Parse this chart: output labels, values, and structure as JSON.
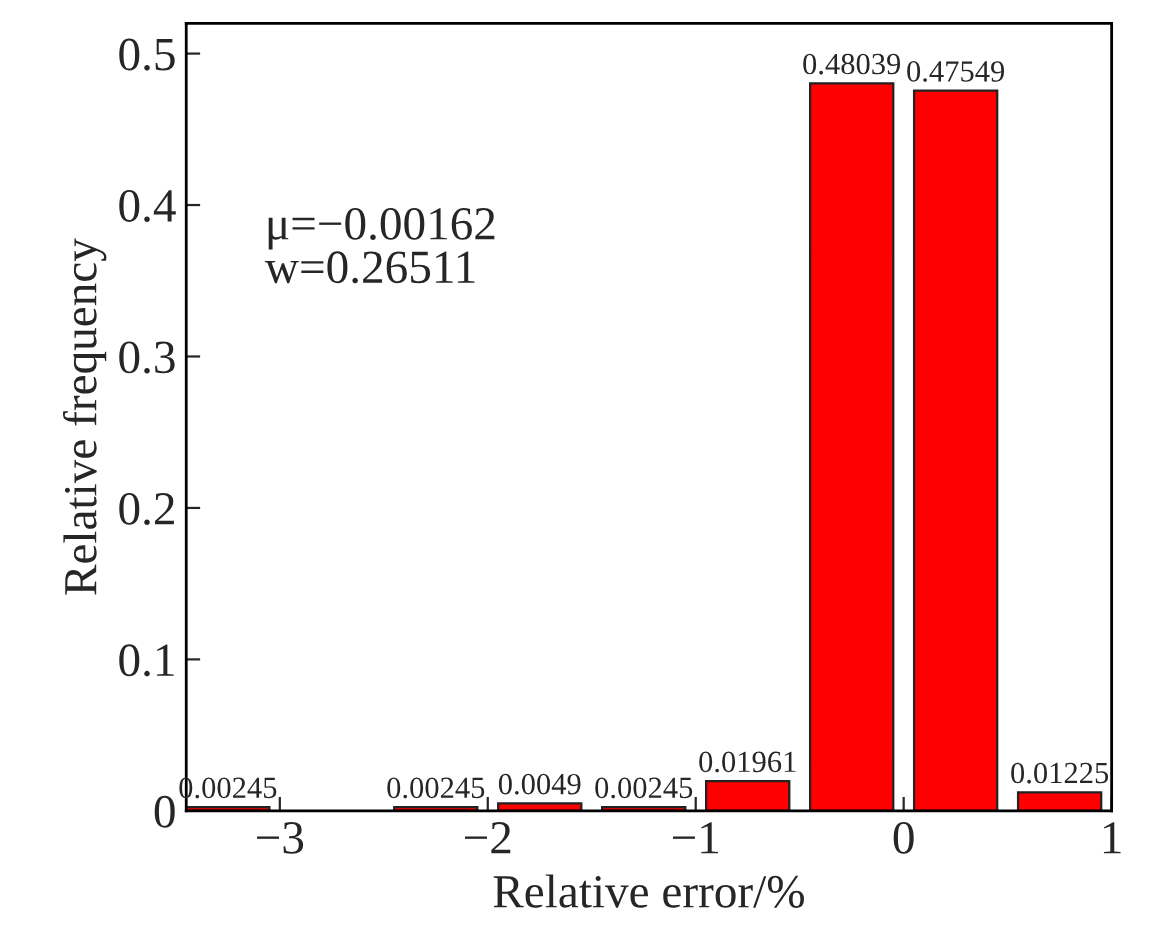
{
  "chart_data": {
    "type": "histogram",
    "xlabel": "Relative error/%",
    "ylabel": "Relative frequency",
    "bins": [
      -3.5,
      -3.0,
      -2.5,
      -2.0,
      -1.5,
      -1.0,
      -0.5,
      0.0,
      0.5,
      1.0
    ],
    "values": [
      0.00245,
      0,
      0.00245,
      0.0049,
      0.00245,
      0.01961,
      0.48039,
      0.47549,
      0.01225
    ],
    "value_labels": [
      "0.00245",
      null,
      "0.00245",
      "0.0049",
      "0.00245",
      "0.01961",
      "0.48039",
      "0.47549",
      "0.01225"
    ],
    "color": "#ff0000",
    "xlim": [
      -3.45,
      1.0
    ],
    "ylim": [
      0,
      0.52
    ],
    "xticks": [
      {
        "value": -3,
        "label": "−3"
      },
      {
        "value": -2,
        "label": "−2"
      },
      {
        "value": -1,
        "label": "−1"
      },
      0,
      1
    ],
    "yticks": [
      0,
      0.1,
      0.2,
      0.3,
      0.4,
      0.5
    ],
    "annotations": [
      "μ=−0.00162",
      "w=0.26511"
    ],
    "grid": false,
    "legend": false
  }
}
